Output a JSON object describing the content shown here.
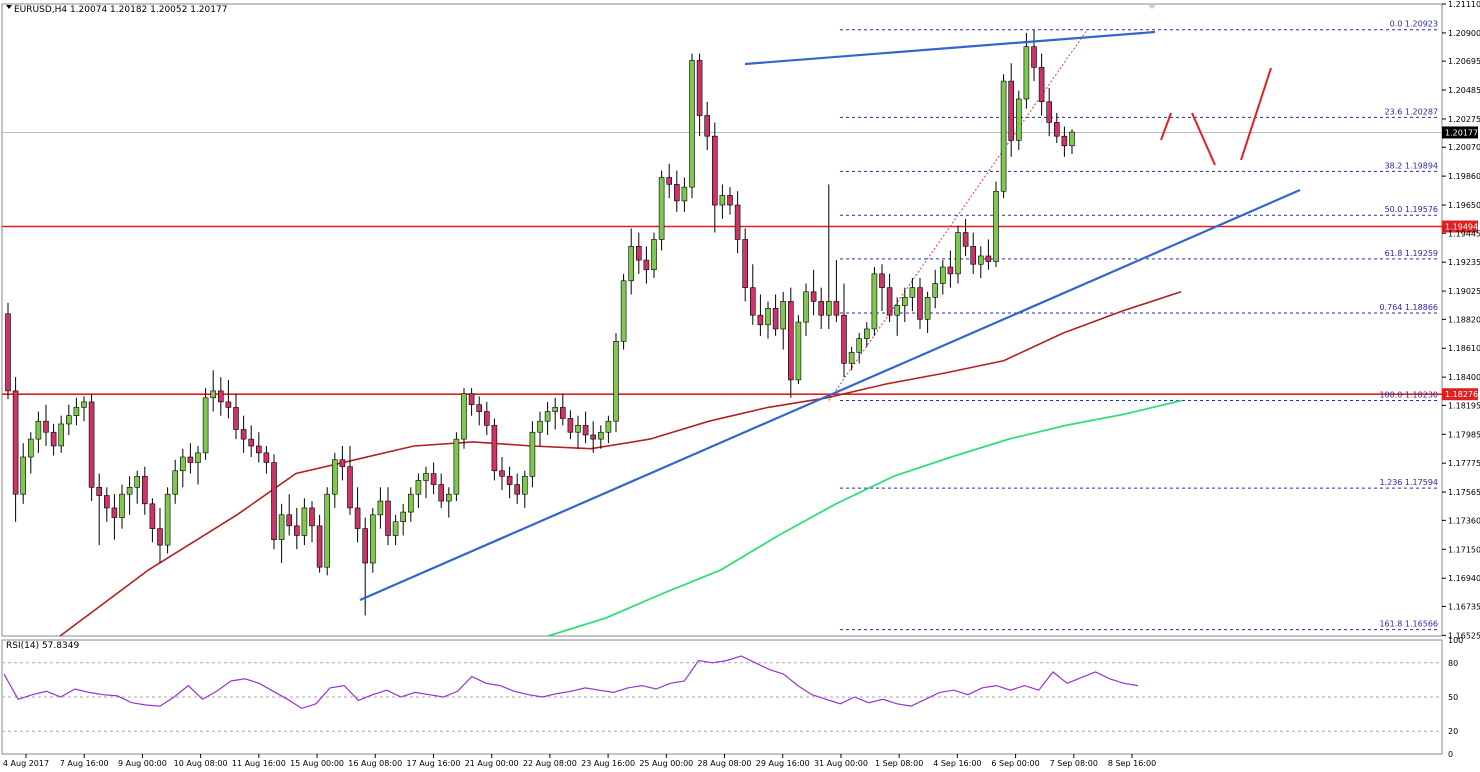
{
  "header": {
    "symbol_line": "EURUSD,H4  1.20074 1.20182 1.20052 1.20177",
    "rsi_label": "RSI(14) 57.8349"
  },
  "colors": {
    "bull": "#7ec850",
    "bear": "#cc3366",
    "wick": "#000000",
    "ma_red": "#b22222",
    "ma_green": "#33dd77",
    "trend": "#3366cc",
    "resistance": "#e02020",
    "fib": "#2a2aa8",
    "rsi": "#9933cc"
  },
  "chart_data": {
    "type": "candlestick",
    "symbol": "EURUSD",
    "timeframe": "H4",
    "ohlc_header": {
      "open": 1.20074,
      "high": 1.20182,
      "low": 1.20052,
      "close": 1.20177
    },
    "last_price": "1.20177",
    "ylim": [
      1.1652,
      1.2111
    ],
    "price_ticks": [
      "1.21110",
      "1.20900",
      "1.20695",
      "1.20485",
      "1.20275",
      "1.20070",
      "1.19860",
      "1.19650",
      "1.19445",
      "1.19235",
      "1.19025",
      "1.18820",
      "1.18610",
      "1.18400",
      "1.18195",
      "1.17985",
      "1.17775",
      "1.17565",
      "1.17360",
      "1.17150",
      "1.16940",
      "1.16735",
      "1.16525"
    ],
    "time_labels": [
      "4 Aug 2017",
      "7 Aug 16:00",
      "9 Aug 00:00",
      "10 Aug 08:00",
      "11 Aug 16:00",
      "15 Aug 00:00",
      "16 Aug 08:00",
      "17 Aug 16:00",
      "21 Aug 00:00",
      "22 Aug 08:00",
      "23 Aug 16:00",
      "25 Aug 00:00",
      "28 Aug 08:00",
      "29 Aug 16:00",
      "31 Aug 00:00",
      "1 Sep 08:00",
      "4 Sep 16:00",
      "6 Sep 00:00",
      "7 Sep 08:00",
      "8 Sep 16:00"
    ],
    "horizontal_levels": [
      {
        "label": "1.19494",
        "value": 1.19494
      },
      {
        "label": "1.18276",
        "value": 1.18276
      }
    ],
    "fibonacci": [
      {
        "label": "0.0 1.20923",
        "value": 1.20923
      },
      {
        "label": "23.6 1.20287",
        "value": 1.20287
      },
      {
        "label": "38.2 1.19894",
        "value": 1.19894
      },
      {
        "label": "50.0 1.19576",
        "value": 1.19576
      },
      {
        "label": "61.8 1.19259",
        "value": 1.19259
      },
      {
        "label": "0.764 1.18866",
        "value": 1.18866
      },
      {
        "label": "100.0 1.18230",
        "value": 1.1823
      },
      {
        "label": "1.236 1.17594",
        "value": 1.17594
      },
      {
        "label": "161.8 1.16566",
        "value": 1.16566
      }
    ],
    "candles": [
      [
        1.1886,
        1.1894,
        1.1824,
        1.183
      ],
      [
        1.183,
        1.184,
        1.1735,
        1.1755
      ],
      [
        1.1755,
        1.1792,
        1.1748,
        1.1782
      ],
      [
        1.1782,
        1.18,
        1.177,
        1.1795
      ],
      [
        1.1795,
        1.1815,
        1.1785,
        1.1808
      ],
      [
        1.1808,
        1.182,
        1.179,
        1.18
      ],
      [
        1.18,
        1.1806,
        1.1783,
        1.179
      ],
      [
        1.179,
        1.1812,
        1.1785,
        1.1806
      ],
      [
        1.1806,
        1.182,
        1.1798,
        1.1812
      ],
      [
        1.1812,
        1.1825,
        1.1805,
        1.1818
      ],
      [
        1.1818,
        1.1826,
        1.1808,
        1.1822
      ],
      [
        1.1822,
        1.1828,
        1.175,
        1.176
      ],
      [
        1.176,
        1.177,
        1.1718,
        1.1754
      ],
      [
        1.1754,
        1.176,
        1.1735,
        1.1745
      ],
      [
        1.1745,
        1.1755,
        1.1722,
        1.1738
      ],
      [
        1.1738,
        1.1762,
        1.173,
        1.1755
      ],
      [
        1.1755,
        1.1768,
        1.174,
        1.176
      ],
      [
        1.176,
        1.1772,
        1.1748,
        1.1768
      ],
      [
        1.1768,
        1.1775,
        1.174,
        1.1748
      ],
      [
        1.1748,
        1.1752,
        1.172,
        1.173
      ],
      [
        1.173,
        1.1745,
        1.1705,
        1.1718
      ],
      [
        1.1718,
        1.176,
        1.1712,
        1.1755
      ],
      [
        1.1755,
        1.178,
        1.1748,
        1.1772
      ],
      [
        1.1772,
        1.1788,
        1.176,
        1.1782
      ],
      [
        1.1782,
        1.1792,
        1.177,
        1.1778
      ],
      [
        1.1778,
        1.179,
        1.1762,
        1.1785
      ],
      [
        1.1785,
        1.1832,
        1.178,
        1.1825
      ],
      [
        1.1825,
        1.1845,
        1.1815,
        1.183
      ],
      [
        1.183,
        1.184,
        1.1812,
        1.1822
      ],
      [
        1.1822,
        1.1838,
        1.181,
        1.1818
      ],
      [
        1.1818,
        1.1828,
        1.1795,
        1.1802
      ],
      [
        1.1802,
        1.1812,
        1.1785,
        1.1795
      ],
      [
        1.1795,
        1.1805,
        1.1782,
        1.179
      ],
      [
        1.179,
        1.18,
        1.1778,
        1.1785
      ],
      [
        1.1785,
        1.179,
        1.177,
        1.1778
      ],
      [
        1.1778,
        1.1784,
        1.1715,
        1.1722
      ],
      [
        1.1722,
        1.1748,
        1.1705,
        1.174
      ],
      [
        1.174,
        1.1755,
        1.1725,
        1.1732
      ],
      [
        1.1732,
        1.1745,
        1.1715,
        1.1725
      ],
      [
        1.1725,
        1.1752,
        1.1718,
        1.1745
      ],
      [
        1.1745,
        1.175,
        1.172,
        1.1732
      ],
      [
        1.1732,
        1.174,
        1.1698,
        1.1702
      ],
      [
        1.1702,
        1.176,
        1.1696,
        1.1755
      ],
      [
        1.1755,
        1.1785,
        1.1745,
        1.178
      ],
      [
        1.178,
        1.179,
        1.1765,
        1.1775
      ],
      [
        1.1775,
        1.179,
        1.174,
        1.1745
      ],
      [
        1.1745,
        1.176,
        1.172,
        1.173
      ],
      [
        1.173,
        1.1738,
        1.1667,
        1.1705
      ],
      [
        1.1705,
        1.1745,
        1.1698,
        1.174
      ],
      [
        1.174,
        1.176,
        1.173,
        1.175
      ],
      [
        1.175,
        1.176,
        1.1718,
        1.1725
      ],
      [
        1.1725,
        1.174,
        1.1718,
        1.1735
      ],
      [
        1.1735,
        1.1748,
        1.1725,
        1.1742
      ],
      [
        1.1742,
        1.176,
        1.1735,
        1.1755
      ],
      [
        1.1755,
        1.177,
        1.1745,
        1.1765
      ],
      [
        1.1765,
        1.1775,
        1.1752,
        1.177
      ],
      [
        1.177,
        1.1778,
        1.1755,
        1.1762
      ],
      [
        1.1762,
        1.177,
        1.1745,
        1.175
      ],
      [
        1.175,
        1.176,
        1.1738,
        1.1755
      ],
      [
        1.1755,
        1.18,
        1.175,
        1.1795
      ],
      [
        1.1795,
        1.1832,
        1.1788,
        1.1828
      ],
      [
        1.1828,
        1.1832,
        1.1812,
        1.182
      ],
      [
        1.182,
        1.1826,
        1.1805,
        1.1815
      ],
      [
        1.1815,
        1.1822,
        1.1798,
        1.1805
      ],
      [
        1.1805,
        1.181,
        1.1765,
        1.1772
      ],
      [
        1.1772,
        1.1782,
        1.1758,
        1.1768
      ],
      [
        1.1768,
        1.1775,
        1.1752,
        1.1762
      ],
      [
        1.1762,
        1.177,
        1.1748,
        1.1755
      ],
      [
        1.1755,
        1.1772,
        1.1745,
        1.1768
      ],
      [
        1.1768,
        1.1808,
        1.176,
        1.18
      ],
      [
        1.18,
        1.1815,
        1.179,
        1.1808
      ],
      [
        1.1808,
        1.1822,
        1.1798,
        1.1815
      ],
      [
        1.1815,
        1.1825,
        1.1802,
        1.1818
      ],
      [
        1.1818,
        1.1828,
        1.1805,
        1.181
      ],
      [
        1.181,
        1.1816,
        1.1795,
        1.18
      ],
      [
        1.18,
        1.1812,
        1.1788,
        1.1805
      ],
      [
        1.1805,
        1.1815,
        1.1792,
        1.1798
      ],
      [
        1.1798,
        1.1808,
        1.1785,
        1.1795
      ],
      [
        1.1795,
        1.1805,
        1.1788,
        1.18
      ],
      [
        1.18,
        1.1812,
        1.1792,
        1.1808
      ],
      [
        1.1808,
        1.1872,
        1.18,
        1.1866
      ],
      [
        1.1866,
        1.1915,
        1.186,
        1.191
      ],
      [
        1.191,
        1.1948,
        1.19,
        1.1935
      ],
      [
        1.1935,
        1.1945,
        1.1915,
        1.1925
      ],
      [
        1.1925,
        1.1935,
        1.1908,
        1.1918
      ],
      [
        1.1918,
        1.1945,
        1.1912,
        1.194
      ],
      [
        1.194,
        1.199,
        1.1932,
        1.1985
      ],
      [
        1.1985,
        1.1995,
        1.197,
        1.198
      ],
      [
        1.198,
        1.199,
        1.196,
        1.1968
      ],
      [
        1.1968,
        1.1985,
        1.196,
        1.1978
      ],
      [
        1.1978,
        1.2075,
        1.197,
        1.207
      ],
      [
        1.207,
        1.2075,
        1.2015,
        1.203
      ],
      [
        1.203,
        1.204,
        1.2005,
        1.2015
      ],
      [
        1.2015,
        1.2025,
        1.1945,
        1.1965
      ],
      [
        1.1965,
        1.198,
        1.1955,
        1.1972
      ],
      [
        1.1972,
        1.1978,
        1.1958,
        1.1965
      ],
      [
        1.1965,
        1.1975,
        1.193,
        1.194
      ],
      [
        1.194,
        1.1948,
        1.1895,
        1.1905
      ],
      [
        1.1905,
        1.1922,
        1.1878,
        1.1885
      ],
      [
        1.1885,
        1.19,
        1.187,
        1.1878
      ],
      [
        1.1878,
        1.1895,
        1.1868,
        1.189
      ],
      [
        1.189,
        1.19,
        1.187,
        1.1875
      ],
      [
        1.1875,
        1.1902,
        1.186,
        1.1895
      ],
      [
        1.1895,
        1.1905,
        1.1825,
        1.1838
      ],
      [
        1.1838,
        1.1885,
        1.1835,
        1.188
      ],
      [
        1.188,
        1.1908,
        1.187,
        1.1902
      ],
      [
        1.1902,
        1.1918,
        1.1885,
        1.1895
      ],
      [
        1.1895,
        1.1905,
        1.1875,
        1.1885
      ],
      [
        1.1885,
        1.198,
        1.1875,
        1.1895
      ],
      [
        1.1895,
        1.1925,
        1.188,
        1.1885
      ],
      [
        1.1885,
        1.1908,
        1.184,
        1.185
      ],
      [
        1.185,
        1.1862,
        1.1845,
        1.1858
      ],
      [
        1.1858,
        1.1872,
        1.185,
        1.1868
      ],
      [
        1.1868,
        1.188,
        1.1862,
        1.1875
      ],
      [
        1.1875,
        1.192,
        1.187,
        1.1915
      ],
      [
        1.1915,
        1.1922,
        1.1888,
        1.1905
      ],
      [
        1.1905,
        1.1915,
        1.188,
        1.1885
      ],
      [
        1.1885,
        1.1898,
        1.187,
        1.1892
      ],
      [
        1.1892,
        1.1905,
        1.188,
        1.1898
      ],
      [
        1.1898,
        1.1912,
        1.1888,
        1.1905
      ],
      [
        1.1905,
        1.1912,
        1.1875,
        1.1882
      ],
      [
        1.1882,
        1.1902,
        1.1872,
        1.1898
      ],
      [
        1.1898,
        1.1918,
        1.189,
        1.1908
      ],
      [
        1.1908,
        1.1925,
        1.19,
        1.192
      ],
      [
        1.192,
        1.1932,
        1.1905,
        1.1915
      ],
      [
        1.1915,
        1.195,
        1.1908,
        1.1945
      ],
      [
        1.1945,
        1.1955,
        1.1928,
        1.1935
      ],
      [
        1.1935,
        1.1945,
        1.1915,
        1.1922
      ],
      [
        1.1922,
        1.1935,
        1.1912,
        1.1928
      ],
      [
        1.1928,
        1.194,
        1.1918,
        1.1924
      ],
      [
        1.1924,
        1.1982,
        1.192,
        1.1975
      ],
      [
        1.1975,
        1.206,
        1.197,
        1.2055
      ],
      [
        1.2055,
        1.2068,
        1.2,
        1.2012
      ],
      [
        1.2012,
        1.2048,
        1.2005,
        1.2042
      ],
      [
        1.2042,
        1.209,
        1.2035,
        1.208
      ],
      [
        1.208,
        1.2092,
        1.2055,
        1.2065
      ],
      [
        1.2065,
        1.2075,
        1.203,
        1.204
      ],
      [
        1.204,
        1.205,
        1.2015,
        1.2025
      ],
      [
        1.2025,
        1.2032,
        1.201,
        1.2015
      ],
      [
        1.2015,
        1.2022,
        1.2,
        1.2008
      ],
      [
        1.2008,
        1.202,
        1.2002,
        1.2018
      ]
    ],
    "ma_red": [
      [
        0,
        1.1652
      ],
      [
        30,
        1.17
      ],
      [
        60,
        1.174
      ],
      [
        80,
        1.177
      ],
      [
        100,
        1.178
      ],
      [
        120,
        1.179
      ],
      [
        140,
        1.1793
      ],
      [
        160,
        1.179
      ],
      [
        180,
        1.1788
      ],
      [
        200,
        1.1795
      ],
      [
        220,
        1.1808
      ],
      [
        240,
        1.1818
      ],
      [
        260,
        1.1825
      ],
      [
        280,
        1.1835
      ],
      [
        300,
        1.1843
      ],
      [
        320,
        1.1852
      ],
      [
        340,
        1.1872
      ],
      [
        360,
        1.1888
      ],
      [
        380,
        1.1902
      ]
    ],
    "ma_green": [
      [
        0,
        1.1652
      ],
      [
        20,
        1.1665
      ],
      [
        40,
        1.1683
      ],
      [
        60,
        1.17
      ],
      [
        80,
        1.1725
      ],
      [
        100,
        1.1748
      ],
      [
        120,
        1.1768
      ],
      [
        140,
        1.1782
      ],
      [
        160,
        1.1795
      ],
      [
        180,
        1.1805
      ],
      [
        200,
        1.1813
      ],
      [
        220,
        1.1823
      ]
    ],
    "rsi": {
      "label": "RSI(14) 57.8349",
      "value": 57.8349,
      "ylim": [
        0,
        100
      ],
      "levels": [
        80,
        50,
        20
      ],
      "ticks": [
        "100",
        "80",
        "50",
        "20",
        "0"
      ],
      "series": [
        70,
        48,
        52,
        55,
        50,
        57,
        54,
        52,
        51,
        45,
        43,
        42,
        50,
        60,
        48,
        55,
        64,
        66,
        62,
        55,
        48,
        40,
        44,
        58,
        60,
        47,
        52,
        56,
        50,
        54,
        52,
        50,
        55,
        68,
        62,
        60,
        55,
        52,
        50,
        53,
        55,
        58,
        56,
        54,
        58,
        60,
        57,
        62,
        64,
        82,
        80,
        82,
        86,
        80,
        74,
        70,
        60,
        52,
        48,
        44,
        50,
        45,
        48,
        44,
        42,
        48,
        54,
        56,
        52,
        58,
        60,
        56,
        60,
        56,
        72,
        62,
        67,
        72,
        66,
        62,
        60
      ]
    }
  }
}
